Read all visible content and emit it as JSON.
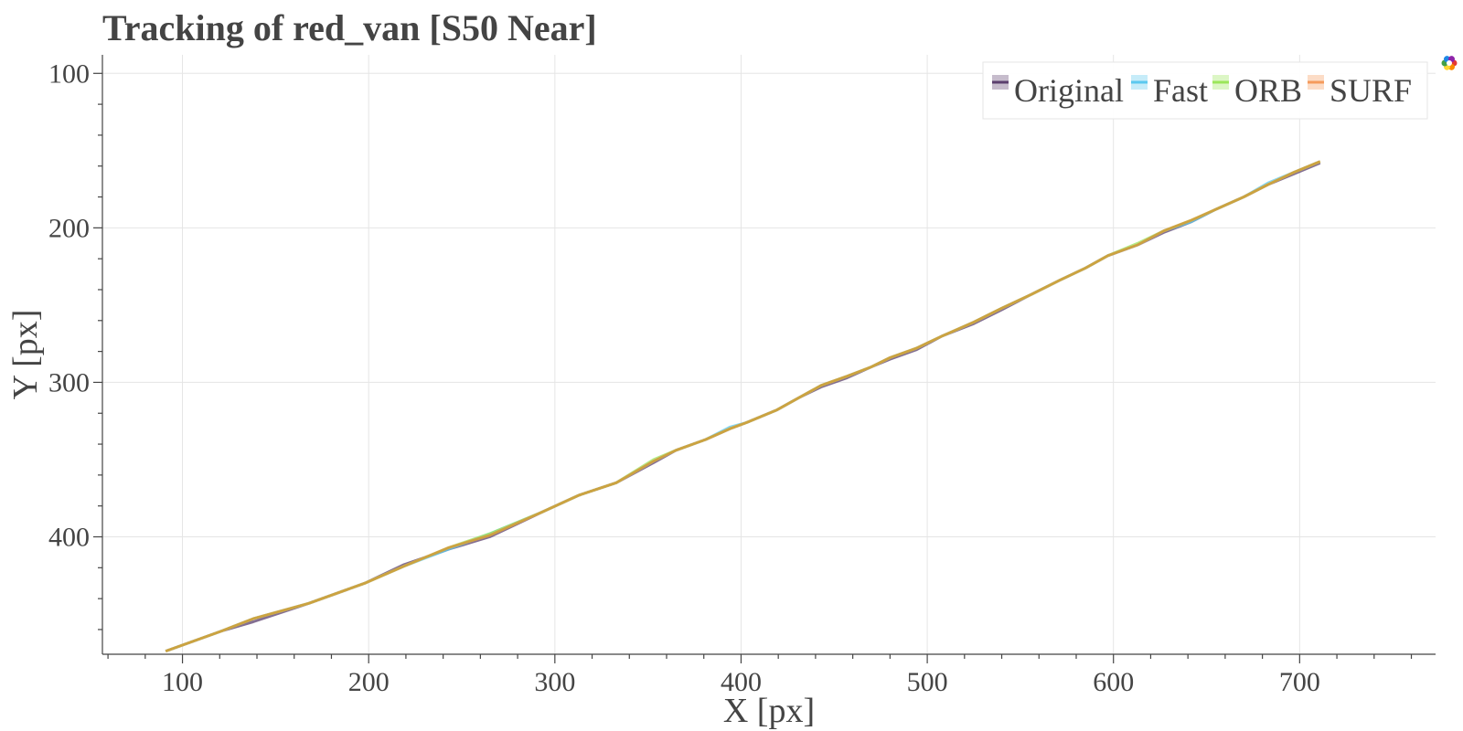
{
  "chart_data": {
    "type": "line",
    "title": "Tracking of red_van [S50 Near]",
    "xlabel": "X [px]",
    "ylabel": "Y [px]",
    "xlim": [
      57,
      773
    ],
    "ylim": [
      476,
      88
    ],
    "y_inverted": true,
    "x_ticks": [
      100,
      200,
      300,
      400,
      500,
      600,
      700
    ],
    "y_ticks": [
      100,
      200,
      300,
      400
    ],
    "grid": true,
    "legend_position": "top-right",
    "legend_orientation": "horizontal",
    "series": [
      {
        "name": "Original",
        "color": "#5b3f6e",
        "x": [
          91,
          121,
          138,
          168,
          198,
          219,
          243,
          265,
          293,
          313,
          333,
          353,
          365,
          381,
          394,
          403,
          419,
          431,
          443,
          457,
          470,
          480,
          494,
          508,
          525,
          540,
          556,
          571,
          585,
          597,
          613,
          627,
          642,
          655,
          670,
          683,
          697,
          711
        ],
        "y": [
          474,
          461,
          455,
          443,
          430,
          418,
          408,
          400,
          384,
          373,
          365,
          352,
          344,
          337,
          330,
          326,
          318,
          310,
          303,
          297,
          290,
          285,
          279,
          270,
          262,
          253,
          243,
          234,
          226,
          218,
          211,
          203,
          196,
          188,
          180,
          172,
          165,
          158
        ]
      },
      {
        "name": "Fast",
        "color": "#5bc8ef",
        "x": [
          91,
          121,
          138,
          168,
          198,
          219,
          243,
          265,
          293,
          313,
          333,
          353,
          365,
          381,
          394,
          403,
          419,
          431,
          443,
          457,
          470,
          480,
          494,
          508,
          525,
          540,
          556,
          571,
          585,
          597,
          613,
          627,
          642,
          655,
          670,
          683,
          697,
          711
        ],
        "y": [
          474,
          461,
          453,
          443,
          430,
          419,
          408,
          398,
          384,
          373,
          365,
          351,
          344,
          337,
          329,
          326,
          318,
          310,
          302,
          296,
          290,
          284,
          278,
          270,
          261,
          252,
          243,
          234,
          226,
          218,
          211,
          202,
          196,
          188,
          180,
          171,
          164,
          157
        ]
      },
      {
        "name": "ORB",
        "color": "#9be65a",
        "x": [
          91,
          121,
          138,
          168,
          198,
          219,
          243,
          265,
          293,
          313,
          333,
          353,
          365,
          381,
          394,
          403,
          419,
          431,
          443,
          457,
          470,
          480,
          494,
          508,
          525,
          540,
          556,
          571,
          585,
          597,
          613,
          627,
          642,
          655,
          670,
          683,
          697,
          711
        ],
        "y": [
          474,
          461,
          453,
          443,
          430,
          419,
          407,
          398,
          384,
          373,
          365,
          350,
          344,
          337,
          330,
          326,
          318,
          310,
          302,
          296,
          290,
          284,
          278,
          270,
          261,
          252,
          243,
          234,
          226,
          218,
          210,
          202,
          195,
          188,
          180,
          172,
          164,
          157
        ]
      },
      {
        "name": "SURF",
        "color": "#f59b5c",
        "x": [
          91,
          121,
          138,
          168,
          198,
          219,
          243,
          265,
          293,
          313,
          333,
          353,
          365,
          381,
          394,
          403,
          419,
          431,
          443,
          457,
          470,
          480,
          494,
          508,
          525,
          540,
          556,
          571,
          585,
          597,
          613,
          627,
          642,
          655,
          670,
          683,
          697,
          711
        ],
        "y": [
          474,
          461,
          453,
          443,
          430,
          419,
          407,
          399,
          384,
          373,
          365,
          351,
          344,
          337,
          330,
          326,
          318,
          310,
          302,
          296,
          290,
          284,
          278,
          270,
          261,
          252,
          243,
          234,
          226,
          218,
          211,
          202,
          195,
          188,
          180,
          172,
          164,
          157
        ]
      }
    ],
    "blend_color": "#c9a23c"
  },
  "toolbar": {
    "logo_icon": "bokeh-logo-icon"
  }
}
